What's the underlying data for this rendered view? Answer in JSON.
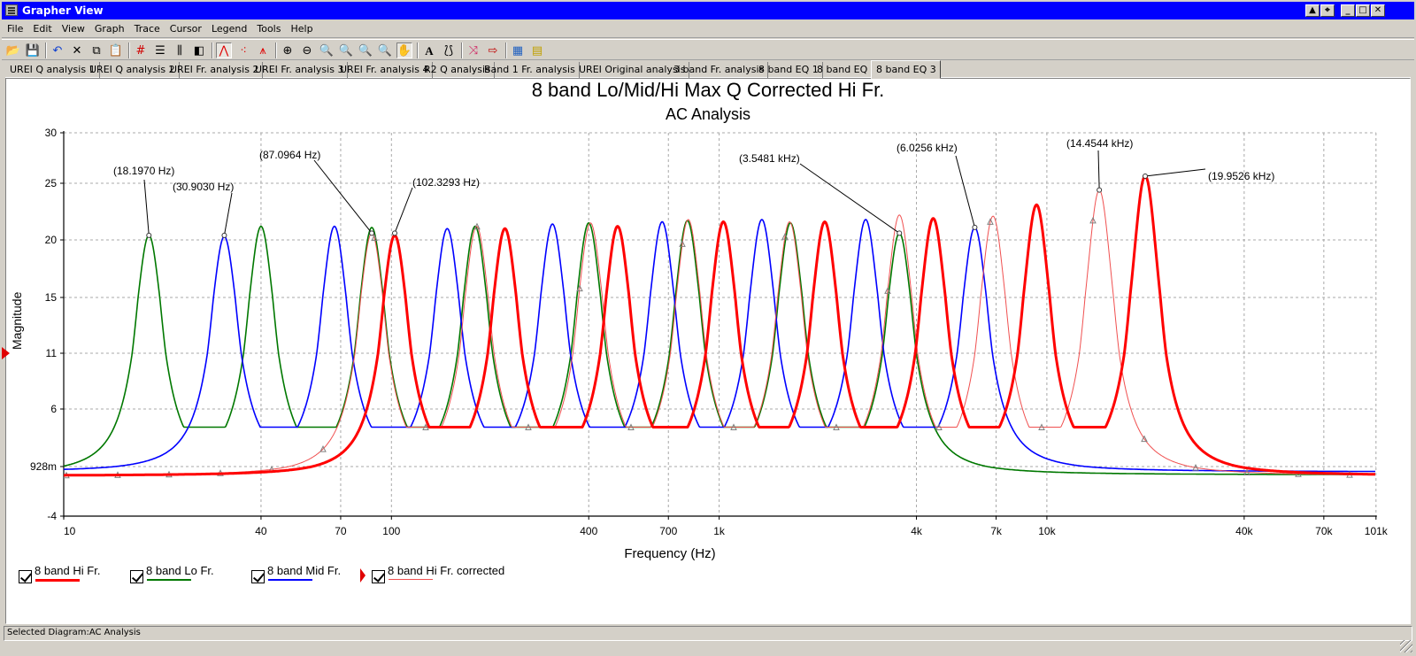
{
  "window": {
    "title": "Grapher View",
    "controls": [
      "restore-up",
      "pin",
      "minimize",
      "maximize",
      "close"
    ]
  },
  "menu": [
    "File",
    "Edit",
    "View",
    "Graph",
    "Trace",
    "Cursor",
    "Legend",
    "Tools",
    "Help"
  ],
  "toolbar": [
    {
      "name": "open-icon",
      "glyph": "📂"
    },
    {
      "name": "save-icon",
      "glyph": "💾"
    },
    {
      "sep": true
    },
    {
      "name": "undo-icon",
      "glyph": "↶"
    },
    {
      "name": "delete-icon",
      "glyph": "✕"
    },
    {
      "name": "copy-icon",
      "glyph": "⧉"
    },
    {
      "name": "paste-icon",
      "glyph": "📋"
    },
    {
      "sep": true
    },
    {
      "name": "grid-icon",
      "glyph": "#"
    },
    {
      "name": "toggle-legend-icon",
      "glyph": "☰"
    },
    {
      "name": "plot-properties-icon",
      "glyph": "⫼"
    },
    {
      "name": "black-white-icon",
      "glyph": "◧"
    },
    {
      "sep": true
    },
    {
      "name": "lines-mode-icon",
      "glyph": "⋀",
      "active": true
    },
    {
      "name": "points-mode-icon",
      "glyph": "⁖"
    },
    {
      "name": "lines-points-mode-icon",
      "glyph": "⩚"
    },
    {
      "sep": true
    },
    {
      "name": "zoom-in-icon",
      "glyph": "⊕"
    },
    {
      "name": "zoom-out-icon",
      "glyph": "⊖"
    },
    {
      "name": "zoom-full-icon",
      "glyph": "🔍"
    },
    {
      "name": "zoom-area-icon",
      "glyph": "🔍"
    },
    {
      "name": "zoom-x-icon",
      "glyph": "🔍"
    },
    {
      "name": "zoom-y-icon",
      "glyph": "🔍"
    },
    {
      "name": "pan-hand-icon",
      "glyph": "✋",
      "active": true
    },
    {
      "sep": true
    },
    {
      "name": "add-text-icon",
      "glyph": "A"
    },
    {
      "name": "label-icon",
      "glyph": "⟅⟆"
    },
    {
      "sep": true
    },
    {
      "name": "cursor-icon",
      "glyph": "⤨"
    },
    {
      "name": "export-icon",
      "glyph": "⇨"
    },
    {
      "sep": true
    },
    {
      "name": "table-icon",
      "glyph": "▦"
    },
    {
      "name": "copy-table-icon",
      "glyph": "▤"
    }
  ],
  "tabs": [
    {
      "label": "UREI Q analysis 1"
    },
    {
      "label": "UREI Q analysis 2"
    },
    {
      "label": "UREI Fr. analysis 2"
    },
    {
      "label": "UREI Fr. analysis 3"
    },
    {
      "label": "UREI Fr. analysis 4"
    },
    {
      "label": "R2 Q analysis"
    },
    {
      "label": "Band 1 Fr. analysis"
    },
    {
      "label": "UREI Original analysis"
    },
    {
      "label": "3 band Fr. analysis"
    },
    {
      "label": "8 band EQ 1"
    },
    {
      "label": "8 band EQ 2"
    },
    {
      "label": "8 band EQ 3",
      "active": true
    }
  ],
  "status": {
    "text": "Selected Diagram:AC Analysis"
  },
  "chart_data": {
    "type": "line",
    "title": "8 band Lo/Mid/Hi Max Q Corrected Hi Fr.",
    "subtitle": "AC Analysis",
    "xlabel": "Frequency (Hz)",
    "ylabel": "Magnitude",
    "xscale": "log",
    "xlim": [
      10,
      101000
    ],
    "x_ticks": [
      "10",
      "40",
      "70",
      "100",
      "400",
      "700",
      "1k",
      "4k",
      "7k",
      "10k",
      "40k",
      "70k",
      "101k"
    ],
    "x_tick_values": [
      10,
      40,
      70,
      100,
      400,
      700,
      1000,
      4000,
      7000,
      10000,
      40000,
      70000,
      101000
    ],
    "y_ticks": [
      "30",
      "25",
      "20",
      "15",
      "11",
      "6",
      "928m",
      "-4"
    ],
    "y_tick_values": [
      30,
      25,
      20,
      15,
      11,
      6,
      0.928,
      -4
    ],
    "ylim": [
      -4,
      30
    ],
    "grid": true,
    "legend_position": "bottom-left",
    "series": [
      {
        "name": "8 band Hi Fr.",
        "color": "#ff0000",
        "width": 3,
        "markers": false,
        "peaks_hz": [
          102.33,
          222,
          490,
          1030,
          2100,
          4500,
          9300,
          19952.6
        ],
        "peaks_mag": [
          20.4,
          21.0,
          21.2,
          21.6,
          21.6,
          21.9,
          23.1,
          25.7
        ],
        "baseline_mag": 0.0
      },
      {
        "name": "8 band Lo Fr.",
        "color": "#007800",
        "width": 1.6,
        "markers": false,
        "peaks_hz": [
          18.197,
          40,
          87.1,
          180,
          400,
          800,
          1650,
          3548.1
        ],
        "peaks_mag": [
          20.4,
          21.2,
          21.1,
          21.2,
          21.5,
          21.7,
          21.5,
          20.6
        ],
        "baseline_mag": 0.1
      },
      {
        "name": "8 band Mid Fr.",
        "color": "#0000ff",
        "width": 1.6,
        "markers": false,
        "peaks_hz": [
          30.903,
          67,
          148,
          310,
          670,
          1350,
          2800,
          6025.6
        ],
        "peaks_mag": [
          20.3,
          21.2,
          21.0,
          21.4,
          21.6,
          21.8,
          21.8,
          21.1
        ],
        "baseline_mag": 0.4
      },
      {
        "name": "8 band Hi Fr. corrected",
        "color": "#f05050",
        "width": 1,
        "markers": true,
        "peaks_hz": [
          87.0964,
          182,
          405,
          805,
          1640,
          3548.1,
          6850,
          14454.4
        ],
        "peaks_mag": [
          20.6,
          21.2,
          21.5,
          21.8,
          21.6,
          22.2,
          22.1,
          24.4
        ],
        "baseline_mag": 0.0
      }
    ],
    "annotations": [
      {
        "text": "(18.1970 Hz)",
        "x": 18.197,
        "y": 20.4
      },
      {
        "text": "(30.9030 Hz)",
        "x": 30.903,
        "y": 20.4
      },
      {
        "text": "(87.0964 Hz)",
        "x": 87.0964,
        "y": 20.6
      },
      {
        "text": "(102.3293 Hz)",
        "x": 102.3293,
        "y": 20.6
      },
      {
        "text": "(3.5481 kHz)",
        "x": 3548.1,
        "y": 20.6
      },
      {
        "text": "(6.0256 kHz)",
        "x": 6025.6,
        "y": 21.1
      },
      {
        "text": "(14.4544 kHz)",
        "x": 14454.4,
        "y": 24.4
      },
      {
        "text": "(19.9526 kHz)",
        "x": 19952.6,
        "y": 25.7
      }
    ]
  },
  "legend": [
    {
      "label": "8 band Hi Fr.",
      "checked": true,
      "color": "#ff0000"
    },
    {
      "label": "8 band Lo Fr.",
      "checked": true,
      "color": "#007800"
    },
    {
      "label": "8 band Mid Fr.",
      "checked": true,
      "color": "#0000ff"
    },
    {
      "label": "8 band Hi Fr. corrected",
      "checked": true,
      "color": "#f05050"
    }
  ]
}
